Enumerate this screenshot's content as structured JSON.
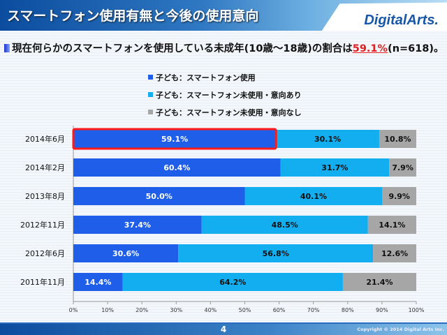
{
  "header": {
    "title": "スマートフォン使用有無と今後の使用意向",
    "logo": "DigitalArts."
  },
  "summary": {
    "prefix": "現在何らかのスマートフォンを使用している未成年(10歳～18歳)の割合は",
    "highlight": "59.1%",
    "suffix": "(n=618)。"
  },
  "footer": {
    "page": "4",
    "copyright": "Copyright © 2014 Digital Arts Inc."
  },
  "chart_data": {
    "type": "bar",
    "orientation": "horizontal",
    "stacked": "percent",
    "categories": [
      "2014年6月",
      "2014年2月",
      "2013年8月",
      "2012年11月",
      "2012年6月",
      "2011年11月"
    ],
    "series": [
      {
        "name": "子ども：スマートフォン使用",
        "color": "#1f5ee8",
        "values": [
          59.1,
          60.4,
          50.0,
          37.4,
          30.6,
          14.4
        ]
      },
      {
        "name": "子ども：スマートフォン未使用・意向あり",
        "color": "#12aef0",
        "values": [
          30.1,
          31.7,
          40.1,
          48.5,
          56.8,
          64.2
        ]
      },
      {
        "name": "子ども：スマートフォン未使用・意向なし",
        "color": "#a6a6a6",
        "values": [
          10.8,
          7.9,
          9.9,
          14.1,
          12.6,
          21.4
        ]
      }
    ],
    "xticks": [
      "0%",
      "10%",
      "20%",
      "30%",
      "40%",
      "50%",
      "60%",
      "70%",
      "80%",
      "90%",
      "100%"
    ],
    "xlim": [
      0,
      100
    ],
    "legend": "top",
    "highlight_category": "2014年6月",
    "highlight_color": "#ff1a1a"
  }
}
